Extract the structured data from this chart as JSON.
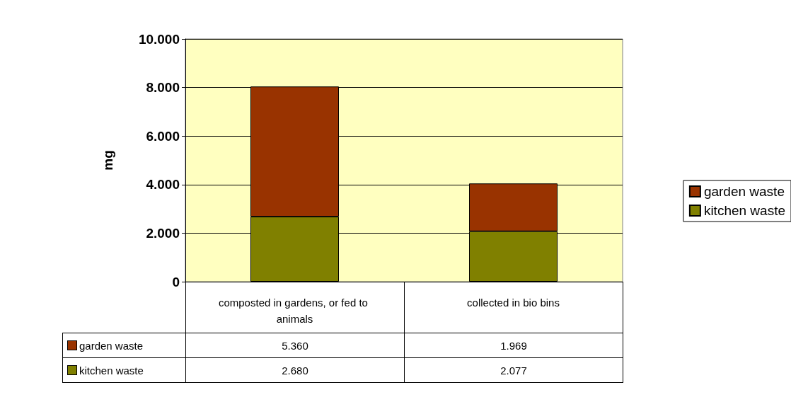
{
  "chart_data": {
    "type": "bar",
    "stacked": true,
    "ylabel": "mg",
    "categories": [
      "composted in gardens, or fed to animals",
      "collected in bio bins"
    ],
    "series": [
      {
        "name": "kitchen waste",
        "color": "#808000",
        "values": [
          2680,
          2077
        ],
        "value_labels": [
          "2.680",
          "2.077"
        ]
      },
      {
        "name": "garden waste",
        "color": "#993300",
        "values": [
          5360,
          1969
        ],
        "value_labels": [
          "5.360",
          "1.969"
        ]
      }
    ],
    "ylim": [
      0,
      10000
    ],
    "yticks": [
      {
        "value": 0,
        "label": "0"
      },
      {
        "value": 2000,
        "label": "2.000"
      },
      {
        "value": 4000,
        "label": "4.000"
      },
      {
        "value": 6000,
        "label": "6.000"
      },
      {
        "value": 8000,
        "label": "8.000"
      },
      {
        "value": 10000,
        "label": "10.000"
      }
    ],
    "grid": "y",
    "legend": "right"
  }
}
